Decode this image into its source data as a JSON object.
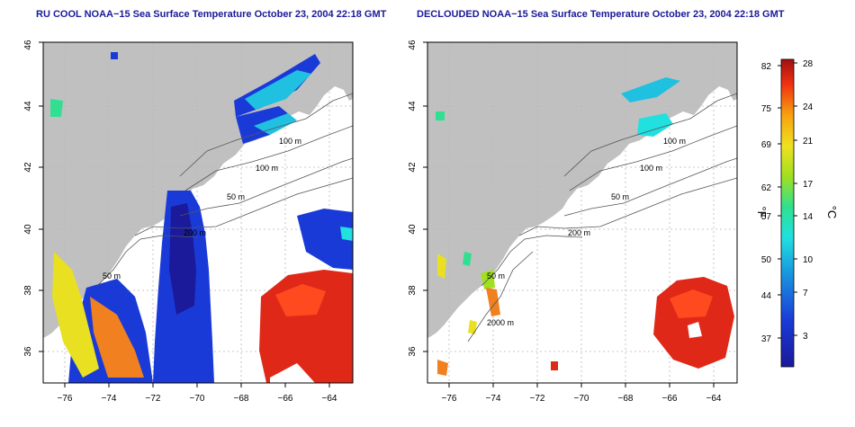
{
  "panels": [
    {
      "title": "RU COOL NOAA−15 Sea Surface Temperature October 23, 2004 22:18 GMT"
    },
    {
      "title": "DECLOUDED NOAA−15 Sea Surface Temperature October 23, 2004 22:18 GMT"
    }
  ],
  "axes": {
    "lon_ticks": [
      "−76",
      "−74",
      "−72",
      "−70",
      "−68",
      "−66",
      "−64"
    ],
    "lat_ticks": [
      "36",
      "38",
      "40",
      "42",
      "44",
      "46"
    ],
    "lon_range": [
      -77.2,
      -63.0
    ],
    "lat_range": [
      35.0,
      46.0
    ]
  },
  "contour_labels": {
    "left": [
      "100 m",
      "100 m",
      "50 m",
      "200 m",
      "50 m"
    ],
    "right": [
      "100 m",
      "100 m",
      "50 m",
      "200 m",
      "50 m",
      "2000 m"
    ]
  },
  "colorbar": {
    "fahrenheit": [
      "82",
      "75",
      "69",
      "62",
      "57",
      "50",
      "44",
      "37"
    ],
    "celsius": [
      "28",
      "24",
      "21",
      "17",
      "14",
      "10",
      "7",
      "3"
    ],
    "f_unit": "°F",
    "c_unit": "°C",
    "range_c": [
      0,
      28
    ]
  },
  "colors": {
    "land": "#c0c0c0",
    "title": "#1a1a9a",
    "warm": "#d81010",
    "cold": "#1a3ad8"
  }
}
